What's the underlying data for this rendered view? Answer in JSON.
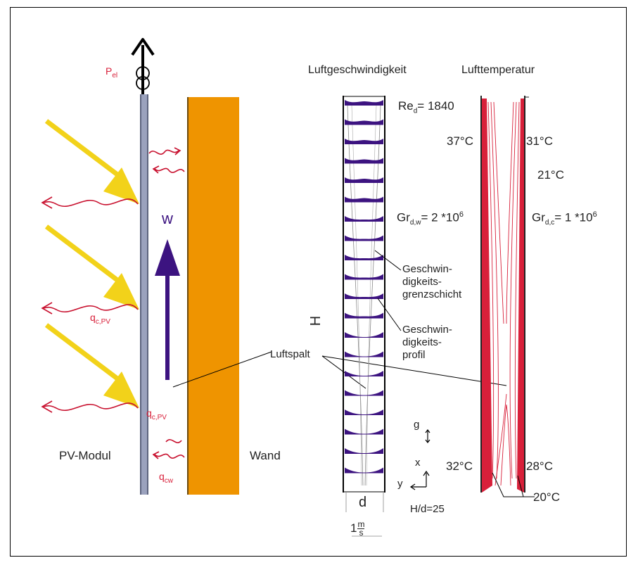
{
  "left_panel": {
    "pv_label": "PV-Modul",
    "wall_label": "Wand",
    "power_label": "P",
    "power_sub": "el",
    "velocity_label": "w",
    "q_pv_label": "q",
    "q_pv_sub": "c,PV",
    "q_pv_label_2": "q",
    "q_pv_sub_2": "c,PV",
    "q_wall_label": "q",
    "q_wall_sub": "cw",
    "gap_label": "Luftspalt"
  },
  "velocity_plot": {
    "title": "Luftgeschwindigkeit",
    "re_label": "Re",
    "re_sub": "d",
    "re_value": "= 1840",
    "gr_label": "Gr",
    "gr_sub": "d,w",
    "gr_value": "= 2 *10",
    "gr_exp": "6",
    "boundary_layer_label": "Geschwin-\ndigkeits-\ngrenzschicht",
    "profile_label": "Geschwin-\ndigkeits-\nprofil",
    "height_label": "H",
    "width_label": "d",
    "scale_number": "1",
    "scale_num": "m",
    "scale_den": "s",
    "gravity_label": "g",
    "x_axis_label": "x",
    "y_axis_label": "y",
    "ratio_label": "H/d=25"
  },
  "temperature_plot": {
    "title": "Lufttemperatur",
    "t_top_left": "37°C",
    "t_top_right": "31°C",
    "t_ambient": "21°C",
    "gr_label": "Gr",
    "gr_sub": "d,c",
    "gr_value": "= 1 *10",
    "gr_exp": "6",
    "t_bottom_left": "32°C",
    "t_bottom_right": "28°C",
    "t_inlet": "20°C"
  },
  "colors": {
    "panel": "#9ba2bd",
    "wall": "#ef9400",
    "sun_rays": "#f2d21a",
    "heat_waves": "#c8102e",
    "flow_arrow": "#3c1380",
    "profile": "#3c1380",
    "temperature": "#d8203a"
  },
  "icons": [
    "up-arrow-icon",
    "transformer-icon",
    "sun-ray-icon",
    "heat-wave-icon",
    "flow-arrow-icon"
  ]
}
